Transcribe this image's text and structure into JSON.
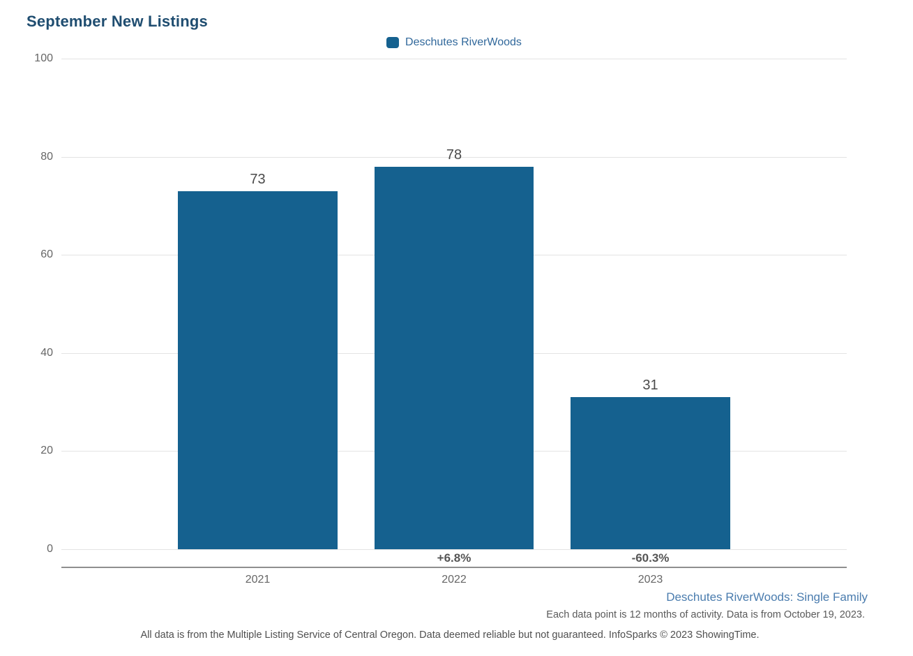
{
  "header": {
    "title": "September New Listings"
  },
  "chart_data": {
    "type": "bar",
    "title": "September New Listings",
    "categories": [
      "2021",
      "2022",
      "2023"
    ],
    "series": [
      {
        "name": "Deschutes RiverWoods",
        "values": [
          73,
          78,
          31
        ]
      }
    ],
    "value_labels": [
      "73",
      "78",
      "31"
    ],
    "pct_change_labels": [
      "",
      "+6.8%",
      "-60.3%"
    ],
    "xlabel": "",
    "ylabel": "",
    "ylim": [
      0,
      100
    ],
    "yticks": [
      0,
      20,
      40,
      60,
      80,
      100
    ],
    "grid": "horizontal",
    "legend_position": "top-center",
    "bar_color": "#15618F"
  },
  "colors": {
    "bar": "#15618F",
    "title": "#1F4D70",
    "legend_text": "#31689B",
    "footnote_link": "#4A7CAE",
    "axis_line": "#8f8f8f",
    "gridline": "#e3e3e3"
  },
  "footer": {
    "series_note": "Deschutes RiverWoods: Single Family",
    "data_note": "Each data point is 12 months of activity. Data is from October 19, 2023.",
    "disclaimer": "All data is from the Multiple Listing Service of Central Oregon. Data deemed reliable but not guaranteed. InfoSparks © 2023 ShowingTime."
  }
}
